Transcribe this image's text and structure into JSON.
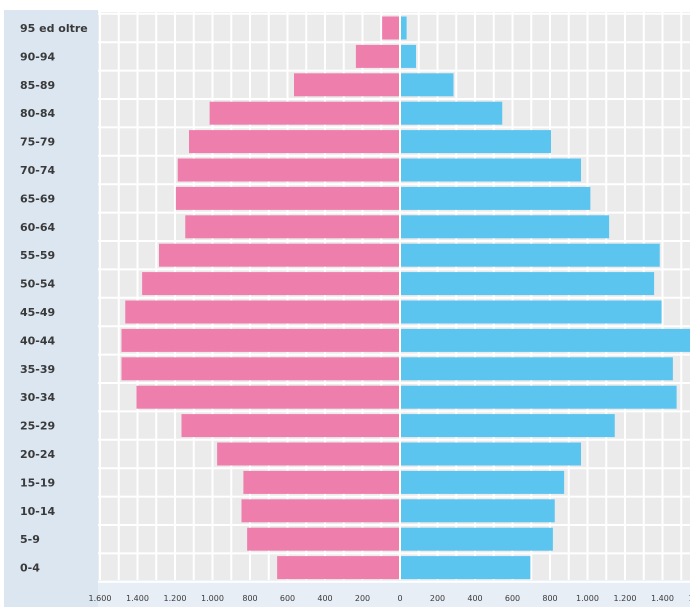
{
  "chart_data": {
    "type": "bar",
    "orientation": "horizontal-diverging",
    "categories": [
      "95 ed oltre",
      "90-94",
      "85-89",
      "80-84",
      "75-79",
      "70-74",
      "65-69",
      "60-64",
      "55-59",
      "50-54",
      "45-49",
      "40-44",
      "35-39",
      "30-34",
      "25-29",
      "20-24",
      "15-19",
      "10-14",
      "5-9",
      "0-4"
    ],
    "series": [
      {
        "values": [
          90,
          230,
          560,
          1010,
          1120,
          1180,
          1190,
          1140,
          1280,
          1370,
          1460,
          1480,
          1480,
          1400,
          1160,
          970,
          830,
          840,
          810,
          650
        ],
        "color": "#ee7fac"
      },
      {
        "values": [
          30,
          80,
          280,
          540,
          800,
          960,
          1010,
          1110,
          1380,
          1350,
          1390,
          1600,
          1450,
          1470,
          1140,
          960,
          870,
          820,
          810,
          690
        ],
        "color": "#5bc5f0"
      }
    ],
    "xlim": [
      -1600,
      1600
    ],
    "x_tick_labels": [
      "1.600",
      "1.400",
      "1.200",
      "1.000",
      "800",
      "600",
      "400",
      "200",
      "0",
      "200",
      "400",
      "600",
      "800",
      "1.000",
      "1.200",
      "1.400",
      "1.600"
    ],
    "grid": true
  }
}
